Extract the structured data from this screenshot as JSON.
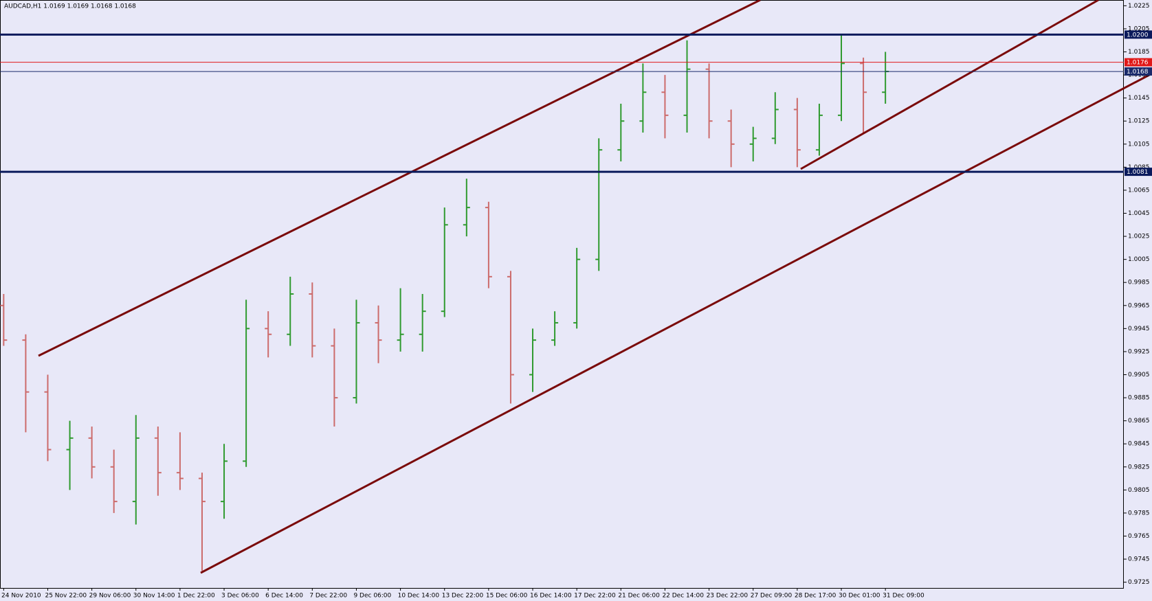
{
  "chart_data": {
    "type": "ohlc",
    "title": "AUDCAD,H1  1.0169 1.0169 1.0168 1.0168",
    "categories": [
      "24 Nov 2010",
      null,
      "25 Nov 22:00",
      null,
      "29 Nov 06:00",
      null,
      "30 Nov 14:00",
      null,
      "1 Dec 22:00",
      null,
      "3 Dec 06:00",
      null,
      "6 Dec 14:00",
      null,
      "7 Dec 22:00",
      null,
      "9 Dec 06:00",
      null,
      "10 Dec 14:00",
      null,
      "13 Dec 22:00",
      null,
      "15 Dec 06:00",
      null,
      "16 Dec 14:00",
      null,
      "17 Dec 22:00",
      null,
      "21 Dec 06:00",
      null,
      "22 Dec 14:00",
      null,
      "23 Dec 22:00",
      null,
      "27 Dec 09:00",
      null,
      "28 Dec 17:00",
      null,
      "30 Dec 01:00",
      null,
      "31 Dec 09:00"
    ],
    "open": [
      0.9965,
      0.9935,
      0.989,
      0.984,
      0.985,
      0.9825,
      0.9795,
      0.985,
      0.982,
      0.9815,
      0.9795,
      0.983,
      0.9945,
      0.994,
      0.9975,
      0.993,
      0.9885,
      0.995,
      0.9935,
      0.994,
      0.996,
      1.0035,
      1.005,
      0.999,
      0.9905,
      0.9935,
      0.995,
      1.0005,
      1.01,
      1.0125,
      1.015,
      1.013,
      1.017,
      1.0125,
      1.0105,
      1.011,
      1.0135,
      1.01,
      1.013,
      1.0175,
      1.015
    ],
    "high": [
      0.9975,
      0.994,
      0.9905,
      0.9865,
      0.986,
      0.984,
      0.987,
      0.986,
      0.9855,
      0.982,
      0.9845,
      0.997,
      0.996,
      0.999,
      0.9985,
      0.9945,
      0.997,
      0.9965,
      0.998,
      0.9975,
      1.005,
      1.0075,
      1.0055,
      0.9995,
      0.9945,
      0.996,
      1.0015,
      1.011,
      1.014,
      1.0175,
      1.0165,
      1.0195,
      1.0175,
      1.0135,
      1.012,
      1.015,
      1.0145,
      1.014,
      1.02,
      1.018,
      1.0185
    ],
    "low": [
      0.993,
      0.9855,
      0.983,
      0.9805,
      0.9815,
      0.9785,
      0.9775,
      0.98,
      0.9805,
      0.9735,
      0.978,
      0.9825,
      0.992,
      0.993,
      0.992,
      0.986,
      0.988,
      0.9915,
      0.9925,
      0.9925,
      0.9955,
      1.0025,
      0.998,
      0.988,
      0.989,
      0.993,
      0.9945,
      0.9995,
      1.009,
      1.0115,
      1.011,
      1.0115,
      1.011,
      1.0085,
      1.009,
      1.0105,
      1.0085,
      1.0095,
      1.0125,
      1.0115,
      1.014
    ],
    "close": [
      0.9935,
      0.989,
      0.984,
      0.985,
      0.9825,
      0.9795,
      0.985,
      0.982,
      0.9815,
      0.9795,
      0.983,
      0.9945,
      0.994,
      0.9975,
      0.993,
      0.9885,
      0.995,
      0.9935,
      0.994,
      0.996,
      1.0035,
      1.005,
      0.999,
      0.9905,
      0.9935,
      0.995,
      1.0005,
      1.01,
      1.0125,
      1.015,
      1.013,
      1.017,
      1.0125,
      1.0105,
      1.011,
      1.0135,
      1.01,
      1.013,
      1.0175,
      1.015,
      1.0168
    ],
    "up_color": "#2f9a2f",
    "down_color": "#cc6b6b",
    "ylim": [
      0.972,
      1.023
    ],
    "yticks": [
      0.9725,
      0.9745,
      0.9765,
      0.9785,
      0.9805,
      0.9825,
      0.9845,
      0.9865,
      0.9885,
      0.9905,
      0.9925,
      0.9945,
      0.9965,
      0.9985,
      1.0005,
      1.0025,
      1.0045,
      1.0065,
      1.0085,
      1.0105,
      1.0125,
      1.0145,
      1.0165,
      1.0185,
      1.0205,
      1.0225
    ],
    "hlines": [
      {
        "value": 1.02,
        "label": "1.0200",
        "color": "#0a1a5c"
      },
      {
        "value": 1.0081,
        "color": "#0a1a5c"
      },
      {
        "value": 1.0176,
        "color": "#e01818"
      },
      {
        "value": 1.0168,
        "color": "#1a2a6a"
      }
    ]
  }
}
